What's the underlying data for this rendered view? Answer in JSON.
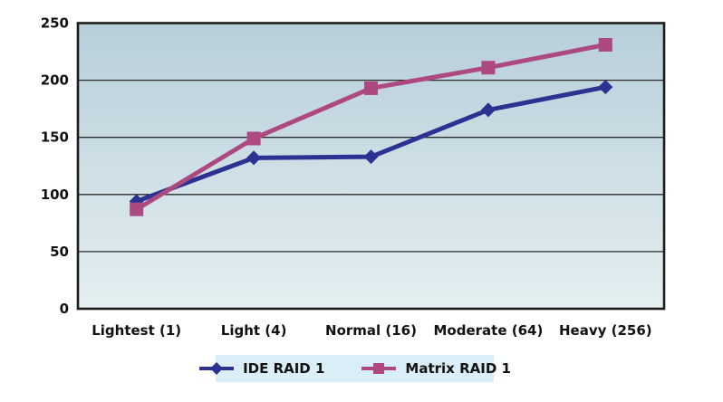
{
  "chart_data": {
    "type": "line",
    "title": "",
    "xlabel": "",
    "ylabel": "",
    "categories": [
      "Lightest (1)",
      "Light (4)",
      "Normal (16)",
      "Moderate (64)",
      "Heavy (256)"
    ],
    "series": [
      {
        "name": "IDE RAID 1",
        "marker": "diamond",
        "color": "#2d3292",
        "values": [
          94,
          132,
          133,
          174,
          194
        ]
      },
      {
        "name": "Matrix RAID 1",
        "marker": "square",
        "color": "#ad4980",
        "values": [
          87,
          149,
          193,
          211,
          231
        ]
      }
    ],
    "ylim": [
      0,
      250
    ],
    "yticks": [
      0,
      50,
      100,
      150,
      200,
      250
    ],
    "grid": true,
    "legend_position": "bottom"
  },
  "colors": {
    "page_bg": "#ffffff",
    "plot_bg_top": "#b7ced9",
    "plot_bg_bottom": "#e4eff1",
    "legend_bg": "#d9eef6",
    "axis": "#1b1b1b",
    "gridline": "#2a2a2a",
    "text": "#111111"
  }
}
